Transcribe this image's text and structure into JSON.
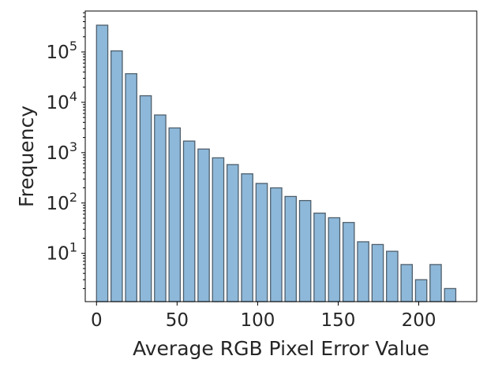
{
  "chart_data": {
    "type": "bar",
    "xlabel": "Average RGB Pixel Error Value",
    "ylabel": "Frequency",
    "yscale": "log",
    "xlim": [
      -7,
      236
    ],
    "ylim": [
      1.1,
      650000
    ],
    "grid": false,
    "bin_width": 9,
    "bar_width": 7,
    "bin_starts": [
      0,
      9,
      18,
      27,
      36,
      45,
      54,
      63,
      72,
      81,
      90,
      99,
      108,
      117,
      126,
      135,
      144,
      153,
      162,
      171,
      180,
      189,
      198,
      207,
      216
    ],
    "values": [
      340000,
      105000,
      37000,
      13500,
      5600,
      3100,
      1700,
      1180,
      790,
      580,
      380,
      245,
      200,
      135,
      112,
      63,
      51,
      41,
      17,
      15,
      11,
      6,
      3,
      6,
      2
    ],
    "x_ticks": [
      {
        "value": 0,
        "label": "0"
      },
      {
        "value": 50,
        "label": "50"
      },
      {
        "value": 100,
        "label": "100"
      },
      {
        "value": 150,
        "label": "150"
      },
      {
        "value": 200,
        "label": "200"
      }
    ],
    "y_ticks": [
      {
        "exp": 1,
        "base": "10",
        "sup": "1"
      },
      {
        "exp": 2,
        "base": "10",
        "sup": "2"
      },
      {
        "exp": 3,
        "base": "10",
        "sup": "3"
      },
      {
        "exp": 4,
        "base": "10",
        "sup": "4"
      },
      {
        "exp": 5,
        "base": "10",
        "sup": "5"
      }
    ],
    "colors": {
      "bar_fill": "#8db8d9",
      "bar_edge": "#4f5f6c",
      "axis": "#000000"
    }
  }
}
